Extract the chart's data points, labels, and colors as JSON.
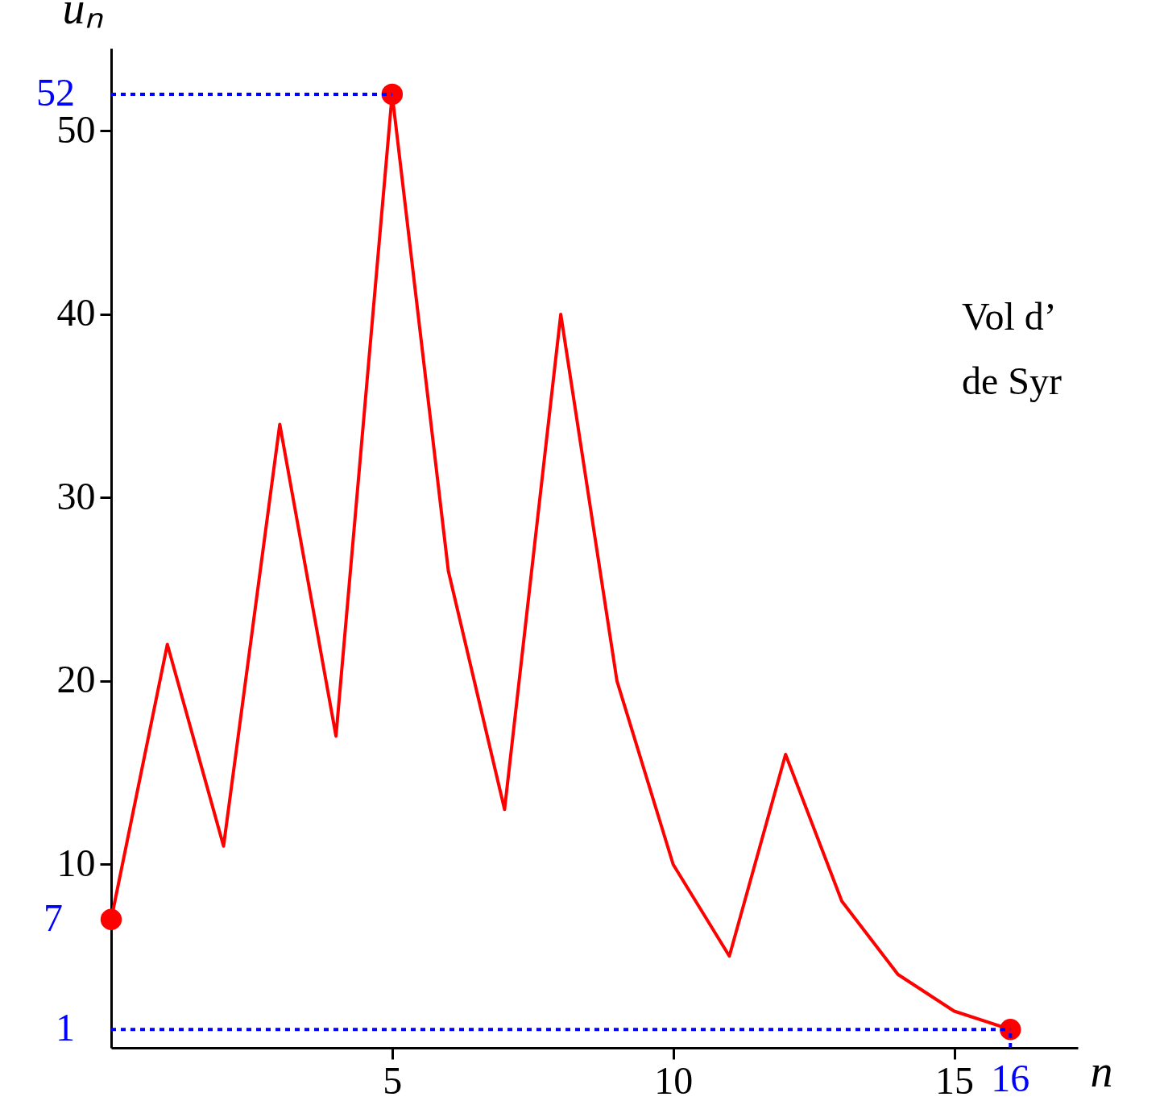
{
  "chart_data": {
    "type": "line",
    "xlabel": "n",
    "ylabel": "uₙ",
    "xlim": [
      0,
      17.2
    ],
    "xticks": [
      5,
      10,
      15
    ],
    "ylim": [
      0,
      54.5
    ],
    "yticks": [
      10,
      20,
      30,
      40,
      50
    ],
    "grid": false,
    "series": [
      {
        "type": "line",
        "color": "#ff0000",
        "x": [
          0,
          1,
          2,
          3,
          4,
          5,
          6,
          7,
          8,
          9,
          10,
          11,
          12,
          13,
          14,
          15,
          16
        ],
        "values": [
          7,
          22,
          11,
          34,
          17,
          52,
          26,
          13,
          40,
          20,
          10,
          5,
          16,
          8,
          4,
          2,
          1
        ]
      },
      {
        "type": "scatter",
        "color": "#ff0000",
        "x": [
          0,
          5,
          16
        ],
        "values": [
          7,
          52,
          1
        ]
      }
    ],
    "ref_lines": [
      {
        "axis": "y",
        "value": 52,
        "label": "52",
        "color": "#0000ff",
        "line_style": "dotted"
      },
      {
        "axis": "y",
        "value": 1,
        "label": "1",
        "color": "#0000ff",
        "line_style": "dotted"
      },
      {
        "axis": "x",
        "value": 16,
        "label": "16",
        "color": "#0000ff",
        "line_style": "dotted"
      }
    ],
    "annotations": [
      {
        "text": "7",
        "x": 0,
        "y": 7
      },
      "Vol d’",
      "de Syr"
    ]
  }
}
